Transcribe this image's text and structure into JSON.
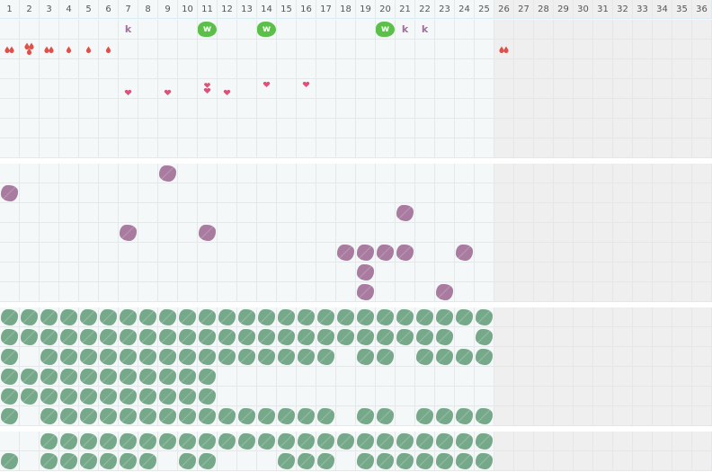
{
  "header": {
    "columns": [
      "1",
      "2",
      "3",
      "4",
      "5",
      "6",
      "7",
      "8",
      "9",
      "10",
      "11",
      "12",
      "13",
      "14",
      "15",
      "16",
      "17",
      "18",
      "19",
      "20",
      "21",
      "22",
      "23",
      "24",
      "25",
      "26",
      "27",
      "28",
      "29",
      "30",
      "31",
      "32",
      "33",
      "34",
      "35",
      "36"
    ],
    "active_columns": 25
  },
  "colors": {
    "grid_line": "#d8ecf4",
    "cell_bg": "#f4f8f9",
    "inactive_bg": "#efefef",
    "green_w": "#5cbf4a",
    "letter_k": "#a0709a",
    "drop": "#e0504a",
    "heart": "#e2507a",
    "purple_blob": "#a97ba0",
    "green_blob": "#76a98a"
  },
  "icons": {
    "w": "w-badge-icon",
    "k": "k-letter-icon",
    "drop": "drop-icon",
    "heart": "heart-icon",
    "purple": "purple-blob-icon",
    "green": "green-blob-icon"
  },
  "sections": [
    {
      "rows": 7,
      "items": [
        {
          "row": 1,
          "col": 7,
          "type": "k",
          "text": "k"
        },
        {
          "row": 1,
          "col": 11,
          "type": "w",
          "text": "w"
        },
        {
          "row": 1,
          "col": 14,
          "type": "w",
          "text": "w"
        },
        {
          "row": 1,
          "col": 20,
          "type": "w",
          "text": "w"
        },
        {
          "row": 1,
          "col": 21,
          "type": "k",
          "text": "k"
        },
        {
          "row": 1,
          "col": 22,
          "type": "k",
          "text": "k"
        },
        {
          "row": 2,
          "col": 1,
          "type": "drop",
          "count": 2
        },
        {
          "row": 2,
          "col": 2,
          "type": "drop",
          "count": 3
        },
        {
          "row": 2,
          "col": 3,
          "type": "drop",
          "count": 2
        },
        {
          "row": 2,
          "col": 4,
          "type": "drop",
          "count": 1
        },
        {
          "row": 2,
          "col": 5,
          "type": "drop",
          "count": 1
        },
        {
          "row": 2,
          "col": 6,
          "type": "drop",
          "count": 1
        },
        {
          "row": 2,
          "col": 26,
          "type": "drop",
          "count": 2
        },
        {
          "row": 4,
          "col": 7,
          "type": "heart",
          "count": 1,
          "pos": "low"
        },
        {
          "row": 4,
          "col": 9,
          "type": "heart",
          "count": 1,
          "pos": "low"
        },
        {
          "row": 4,
          "col": 11,
          "type": "heart",
          "count": 2,
          "pos": "mid"
        },
        {
          "row": 4,
          "col": 12,
          "type": "heart",
          "count": 1,
          "pos": "low"
        },
        {
          "row": 4,
          "col": 14,
          "type": "heart",
          "count": 1,
          "pos": "high"
        },
        {
          "row": 4,
          "col": 16,
          "type": "heart",
          "count": 1,
          "pos": "high"
        }
      ]
    },
    {
      "rows": 7,
      "items": [
        {
          "row": 1,
          "col": 9,
          "type": "purple"
        },
        {
          "row": 2,
          "col": 1,
          "type": "purple"
        },
        {
          "row": 3,
          "col": 21,
          "type": "purple"
        },
        {
          "row": 4,
          "col": 7,
          "type": "purple"
        },
        {
          "row": 4,
          "col": 11,
          "type": "purple"
        },
        {
          "row": 5,
          "col": 18,
          "type": "purple"
        },
        {
          "row": 5,
          "col": 19,
          "type": "purple"
        },
        {
          "row": 5,
          "col": 20,
          "type": "purple"
        },
        {
          "row": 5,
          "col": 21,
          "type": "purple"
        },
        {
          "row": 5,
          "col": 24,
          "type": "purple"
        },
        {
          "row": 6,
          "col": 19,
          "type": "purple"
        },
        {
          "row": 7,
          "col": 19,
          "type": "purple"
        },
        {
          "row": 7,
          "col": 23,
          "type": "purple"
        }
      ]
    },
    {
      "rows": 6,
      "pattern": [
        "#########################",
        "#######################.#",
        "#.###############.##.####",
        "###########..............",
        "###########..............",
        "#.###############.##.####"
      ]
    },
    {
      "rows": 2,
      "pattern": [
        "..#######################",
        "#.######.##...###.#######"
      ]
    }
  ]
}
